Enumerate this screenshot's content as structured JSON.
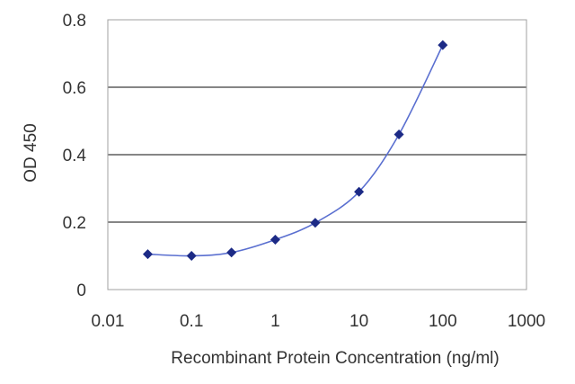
{
  "chart_data": {
    "type": "line",
    "title": "",
    "xlabel": "Recombinant Protein Concentration (ng/ml)",
    "ylabel": "OD 450",
    "x_scale": "log",
    "xlim": [
      0.01,
      1000
    ],
    "ylim": [
      0,
      0.8
    ],
    "x_ticks": [
      "0.01",
      "0.1",
      "1",
      "10",
      "100",
      "1000"
    ],
    "y_ticks": [
      "0",
      "0.2",
      "0.4",
      "0.6",
      "0.8"
    ],
    "grid": "horizontal",
    "legend": "none",
    "series": [
      {
        "x": [
          0.03,
          0.1,
          0.3,
          1,
          3,
          10,
          30,
          100
        ],
        "y": [
          0.105,
          0.1,
          0.11,
          0.148,
          0.198,
          0.29,
          0.46,
          0.725
        ]
      }
    ],
    "colors": {
      "series": "#5a6fd0",
      "marker": "#1c2a86",
      "grid": "#3f3f3f",
      "frame": "#a0a0a0"
    }
  }
}
